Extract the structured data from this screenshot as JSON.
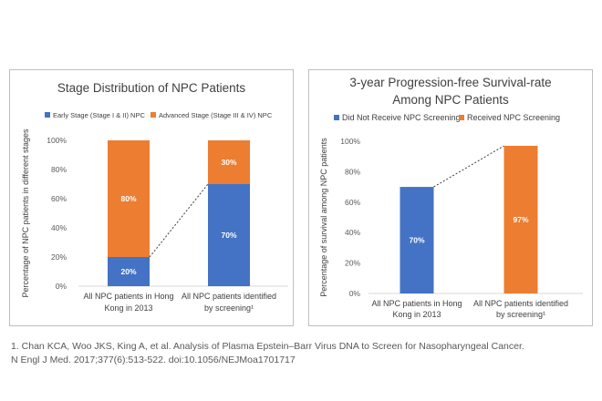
{
  "charts": [
    {
      "id": "left",
      "chart_data": {
        "type": "bar",
        "stacked": true,
        "title": "Stage Distribution of NPC Patients",
        "ylabel": "Percentage of NPC patients in different stages",
        "categories": [
          [
            "All NPC patients in Hong",
            "Kong in 2013"
          ],
          [
            "All NPC patients identified",
            "by screening¹"
          ]
        ],
        "series": [
          {
            "name": "Early Stage (Stage I & II) NPC",
            "values": [
              20,
              70
            ],
            "labels": [
              "20%",
              "70%"
            ],
            "color": "#4472c4"
          },
          {
            "name": "Advanced Stage (Stage III & IV) NPC",
            "values": [
              80,
              30
            ],
            "labels": [
              "80%",
              "30%"
            ],
            "color": "#ed7d31"
          }
        ],
        "ylim": [
          0,
          100
        ],
        "yticks": [
          "0%",
          "20%",
          "40%",
          "60%",
          "80%",
          "100%"
        ],
        "legend": "top",
        "grid": false,
        "connector": "dotted line between tops of early-stage segments"
      }
    },
    {
      "id": "right",
      "chart_data": {
        "type": "bar",
        "title": [
          "3-year Progression-free Survival-rate",
          "Among NPC Patients"
        ],
        "ylabel": "Percentage of survival among NPC patients",
        "categories": [
          [
            "All NPC patients in Hong",
            "Kong in 2013"
          ],
          [
            "All NPC patients identified",
            "by screening¹"
          ]
        ],
        "series": [
          {
            "name": "Did Not Receive NPC Screening",
            "values": [
              70,
              null
            ],
            "labels": [
              "70%",
              ""
            ],
            "color": "#4472c4"
          },
          {
            "name": "Received NPC Screening",
            "values": [
              null,
              97
            ],
            "labels": [
              "",
              "97%"
            ],
            "color": "#ed7d31"
          }
        ],
        "ylim": [
          0,
          100
        ],
        "yticks": [
          "0%",
          "20%",
          "40%",
          "60%",
          "80%",
          "100%"
        ],
        "legend": "top",
        "grid": false,
        "connector": "dotted line between bar tops"
      }
    }
  ],
  "footnote": {
    "line1": "1. Chan KCA, Woo JKS, King A, et al. Analysis of Plasma Epstein–Barr Virus DNA to Screen for Nasopharyngeal Cancer.",
    "line2": "N Engl J Med. 2017;377(6):513-522. doi:10.1056/NEJMoa1701717"
  }
}
